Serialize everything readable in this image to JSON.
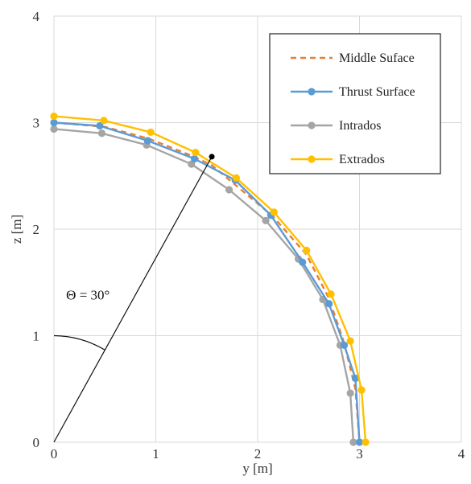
{
  "chart_data": {
    "type": "line",
    "xlabel": "y [m]",
    "ylabel": "z [m]",
    "xlim": [
      0,
      4
    ],
    "ylim": [
      0,
      4
    ],
    "x_ticks": [
      "0",
      "1",
      "2",
      "3",
      "4"
    ],
    "y_ticks": [
      "0",
      "1",
      "2",
      "3",
      "4"
    ],
    "grid": true,
    "legend_position": "top-right",
    "series": [
      {
        "name": "Middle Suface",
        "color": "#ED7D31",
        "style": "dashed",
        "markers": false,
        "points": [
          [
            0,
            3.0
          ],
          [
            0.5,
            2.96
          ],
          [
            0.93,
            2.85
          ],
          [
            1.35,
            2.69
          ],
          [
            1.55,
            2.6
          ],
          [
            1.75,
            2.44
          ],
          [
            2.15,
            2.12
          ],
          [
            2.48,
            1.76
          ],
          [
            2.7,
            1.35
          ],
          [
            2.85,
            0.93
          ],
          [
            2.96,
            0.5
          ],
          [
            3.0,
            0.0
          ]
        ]
      },
      {
        "name": "Thrust Surface",
        "color": "#5B9BD5",
        "style": "solid",
        "markers": true,
        "points": [
          [
            0,
            3.0
          ],
          [
            0.45,
            2.97
          ],
          [
            0.92,
            2.83
          ],
          [
            1.38,
            2.66
          ],
          [
            1.78,
            2.46
          ],
          [
            2.13,
            2.13
          ],
          [
            2.44,
            1.69
          ],
          [
            2.7,
            1.3
          ],
          [
            2.85,
            0.91
          ],
          [
            2.96,
            0.6
          ],
          [
            3.0,
            0.0
          ]
        ]
      },
      {
        "name": "Intrados",
        "color": "#A5A5A5",
        "style": "solid",
        "markers": true,
        "points": [
          [
            0,
            2.94
          ],
          [
            0.47,
            2.9
          ],
          [
            0.91,
            2.79
          ],
          [
            1.35,
            2.61
          ],
          [
            1.72,
            2.37
          ],
          [
            2.08,
            2.08
          ],
          [
            2.4,
            1.72
          ],
          [
            2.64,
            1.34
          ],
          [
            2.81,
            0.91
          ],
          [
            2.91,
            0.46
          ],
          [
            2.94,
            0.0
          ]
        ]
      },
      {
        "name": "Extrados",
        "color": "#FFC000",
        "style": "solid",
        "markers": true,
        "points": [
          [
            0,
            3.06
          ],
          [
            0.49,
            3.02
          ],
          [
            0.95,
            2.91
          ],
          [
            1.39,
            2.72
          ],
          [
            1.79,
            2.48
          ],
          [
            2.16,
            2.16
          ],
          [
            2.48,
            1.8
          ],
          [
            2.72,
            1.39
          ],
          [
            2.91,
            0.95
          ],
          [
            3.02,
            0.49
          ],
          [
            3.06,
            0.0
          ]
        ]
      }
    ],
    "annotation": {
      "label": "Θ = 30°",
      "ray_end": [
        1.55,
        2.68
      ],
      "arc_radius": 1.0
    }
  }
}
